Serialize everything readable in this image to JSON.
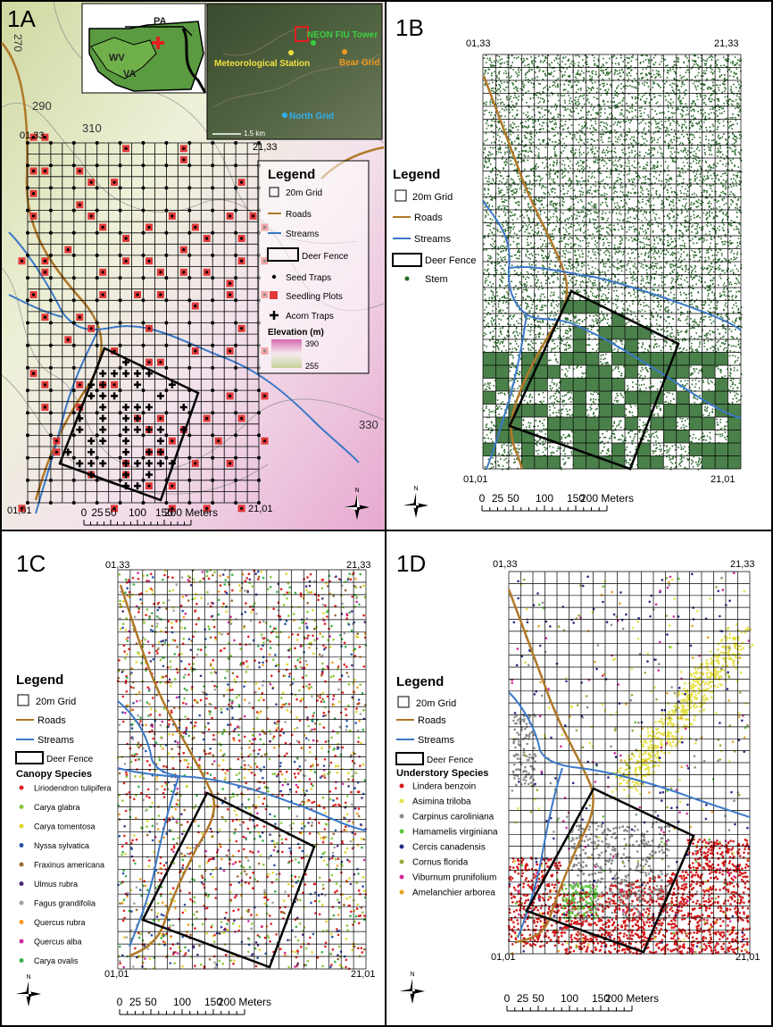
{
  "panels": {
    "a": {
      "label": "1A",
      "corner_nw": "01,33",
      "corner_ne": "21,33",
      "corner_sw": "01,01",
      "corner_se": "21,01",
      "contours": [
        "270",
        "290",
        "310",
        "330"
      ],
      "states": [
        "PA",
        "WV",
        "VA"
      ],
      "sites": {
        "tower": "NEON FIU Tower",
        "met": "Meteorological Station",
        "bear": "Bear Grid",
        "north": "North Grid",
        "scale": "1.5 km"
      },
      "legend": {
        "title": "Legend",
        "grid": "20m Grid",
        "roads": "Roads",
        "streams": "Streams",
        "fence": "Deer Fence",
        "seed": "Seed Traps",
        "seedling": "Seedling Plots",
        "acorn": "Acorn Traps",
        "elev_title": "Elevation (m)",
        "elev_max": "390",
        "elev_min": "255"
      },
      "scale_ticks": [
        "0",
        "25",
        "50",
        "100",
        "150",
        "200 Meters"
      ]
    },
    "b": {
      "label": "1B",
      "corner_nw": "01,33",
      "corner_ne": "21,33",
      "corner_sw": "01,01",
      "corner_se": "21,01",
      "legend": {
        "title": "Legend",
        "grid": "20m Grid",
        "roads": "Roads",
        "streams": "Streams",
        "fence": "Deer Fence",
        "stem": "Stem"
      },
      "scale_ticks": [
        "0",
        "25",
        "50",
        "100",
        "150",
        "200 Meters"
      ]
    },
    "c": {
      "label": "1C",
      "corner_nw": "01,33",
      "corner_ne": "21,33",
      "corner_sw": "01,01",
      "corner_se": "21,01",
      "legend": {
        "title": "Legend",
        "grid": "20m Grid",
        "roads": "Roads",
        "streams": "Streams",
        "fence": "Deer Fence",
        "species_title": "Canopy Species"
      },
      "species": [
        {
          "name": "Liriodendron tulipifera",
          "color": "#e02020"
        },
        {
          "name": "Carya glabra",
          "color": "#8ac83a"
        },
        {
          "name": "Carya tomentosa",
          "color": "#e0d62a"
        },
        {
          "name": "Nyssa sylvatica",
          "color": "#2a52a8"
        },
        {
          "name": "Fraxinus americana",
          "color": "#9a6a30"
        },
        {
          "name": "Ulmus rubra",
          "color": "#4a2a7a"
        },
        {
          "name": "Fagus grandifolia",
          "color": "#a0a0a0"
        },
        {
          "name": "Quercus rubra",
          "color": "#f09a20"
        },
        {
          "name": "Quercus alba",
          "color": "#d02aa0"
        },
        {
          "name": "Carya ovalis",
          "color": "#3ab04a"
        }
      ],
      "scale_ticks": [
        "0",
        "25",
        "50",
        "100",
        "150",
        "200 Meters"
      ]
    },
    "d": {
      "label": "1D",
      "corner_nw": "01,33",
      "corner_ne": "21,33",
      "corner_sw": "01,01",
      "corner_se": "21,01",
      "legend": {
        "title": "Legend",
        "grid": "20m Grid",
        "roads": "Roads",
        "streams": "Streams",
        "fence": "Deer Fence",
        "species_title": "Understory Species"
      },
      "species": [
        {
          "name": "Lindera benzoin",
          "color": "#d41a1a"
        },
        {
          "name": "Asimina triloba",
          "color": "#e6e24a"
        },
        {
          "name": "Carpinus caroliniana",
          "color": "#8c8c8c"
        },
        {
          "name": "Hamamelis virginiana",
          "color": "#5cc83a"
        },
        {
          "name": "Cercis canadensis",
          "color": "#2a2a8a"
        },
        {
          "name": "Cornus florida",
          "color": "#9aa83a"
        },
        {
          "name": "Viburnum prunifolium",
          "color": "#d02a9a"
        },
        {
          "name": "Amelanchier arborea",
          "color": "#e8a020"
        }
      ],
      "scale_ticks": [
        "0",
        "25",
        "50",
        "100",
        "150",
        "200 Meters"
      ]
    }
  },
  "north_label": "N",
  "colors": {
    "road": "#b07828",
    "stream": "#3a78c8",
    "stem": "#2a6a2a",
    "seedling": "#e23a3a"
  }
}
